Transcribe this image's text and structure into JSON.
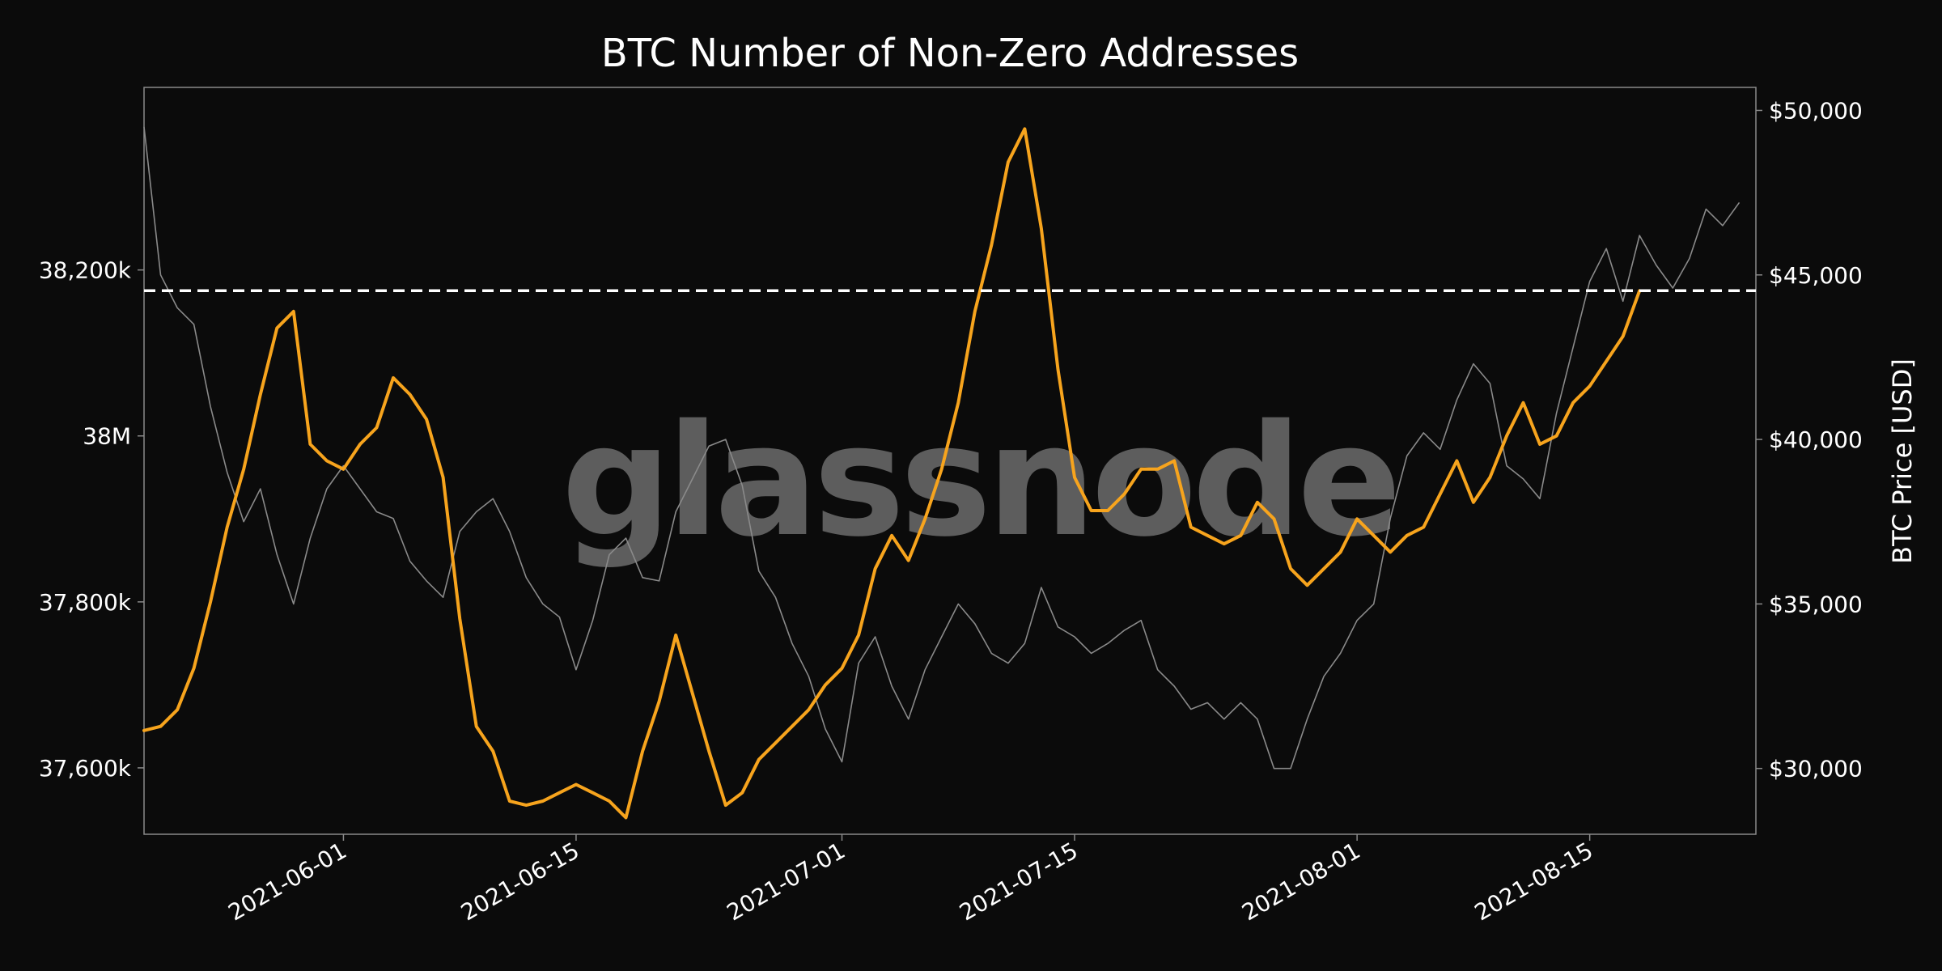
{
  "chart_data": {
    "type": "line",
    "title": "BTC Number of Non-Zero Addresses",
    "watermark": "glassnode",
    "xlabel": "",
    "ylabel_left": "",
    "ylabel_right": "BTC Price [USD]",
    "x_range": [
      "2021-05-20",
      "2021-08-25"
    ],
    "x_ticks": [
      "2021-06-01",
      "2021-06-15",
      "2021-07-01",
      "2021-07-15",
      "2021-08-01",
      "2021-08-15"
    ],
    "y_left_range": [
      37520,
      38420
    ],
    "y_left_unit": "thousand addresses",
    "y_left_ticks": [
      {
        "value": 37600,
        "label": "37,600k"
      },
      {
        "value": 37800,
        "label": "37,800k"
      },
      {
        "value": 38000,
        "label": "38M"
      },
      {
        "value": 38200,
        "label": "38,200k"
      }
    ],
    "y_right_range": [
      28000,
      50700
    ],
    "y_right_ticks": [
      {
        "value": 30000,
        "label": "$30,000"
      },
      {
        "value": 35000,
        "label": "$35,000"
      },
      {
        "value": 40000,
        "label": "$40,000"
      },
      {
        "value": 45000,
        "label": "$45,000"
      },
      {
        "value": 50000,
        "label": "$50,000"
      }
    ],
    "reference_line": {
      "value": 38175,
      "style": "dashed",
      "color": "#ffffff"
    },
    "grid": false,
    "series": [
      {
        "name": "Non-Zero Addresses",
        "axis": "left",
        "color": "#f7a41d",
        "points": [
          [
            "2021-05-20",
            37645
          ],
          [
            "2021-05-21",
            37650
          ],
          [
            "2021-05-22",
            37670
          ],
          [
            "2021-05-23",
            37720
          ],
          [
            "2021-05-24",
            37800
          ],
          [
            "2021-05-25",
            37890
          ],
          [
            "2021-05-26",
            37960
          ],
          [
            "2021-05-27",
            38050
          ],
          [
            "2021-05-28",
            38130
          ],
          [
            "2021-05-29",
            38150
          ],
          [
            "2021-05-30",
            37990
          ],
          [
            "2021-05-31",
            37970
          ],
          [
            "2021-06-01",
            37960
          ],
          [
            "2021-06-02",
            37990
          ],
          [
            "2021-06-03",
            38010
          ],
          [
            "2021-06-04",
            38070
          ],
          [
            "2021-06-05",
            38050
          ],
          [
            "2021-06-06",
            38020
          ],
          [
            "2021-06-07",
            37950
          ],
          [
            "2021-06-08",
            37780
          ],
          [
            "2021-06-09",
            37650
          ],
          [
            "2021-06-10",
            37620
          ],
          [
            "2021-06-11",
            37560
          ],
          [
            "2021-06-12",
            37555
          ],
          [
            "2021-06-13",
            37560
          ],
          [
            "2021-06-14",
            37570
          ],
          [
            "2021-06-15",
            37580
          ],
          [
            "2021-06-16",
            37570
          ],
          [
            "2021-06-17",
            37560
          ],
          [
            "2021-06-18",
            37540
          ],
          [
            "2021-06-19",
            37620
          ],
          [
            "2021-06-20",
            37680
          ],
          [
            "2021-06-21",
            37760
          ],
          [
            "2021-06-22",
            37690
          ],
          [
            "2021-06-23",
            37620
          ],
          [
            "2021-06-24",
            37555
          ],
          [
            "2021-06-25",
            37570
          ],
          [
            "2021-06-26",
            37610
          ],
          [
            "2021-06-27",
            37630
          ],
          [
            "2021-06-28",
            37650
          ],
          [
            "2021-06-29",
            37670
          ],
          [
            "2021-06-30",
            37700
          ],
          [
            "2021-07-01",
            37720
          ],
          [
            "2021-07-02",
            37760
          ],
          [
            "2021-07-03",
            37840
          ],
          [
            "2021-07-04",
            37880
          ],
          [
            "2021-07-05",
            37850
          ],
          [
            "2021-07-06",
            37900
          ],
          [
            "2021-07-07",
            37960
          ],
          [
            "2021-07-08",
            38040
          ],
          [
            "2021-07-09",
            38150
          ],
          [
            "2021-07-10",
            38230
          ],
          [
            "2021-07-11",
            38330
          ],
          [
            "2021-07-12",
            38370
          ],
          [
            "2021-07-13",
            38250
          ],
          [
            "2021-07-14",
            38080
          ],
          [
            "2021-07-15",
            37950
          ],
          [
            "2021-07-16",
            37910
          ],
          [
            "2021-07-17",
            37910
          ],
          [
            "2021-07-18",
            37930
          ],
          [
            "2021-07-19",
            37960
          ],
          [
            "2021-07-20",
            37960
          ],
          [
            "2021-07-21",
            37970
          ],
          [
            "2021-07-22",
            37890
          ],
          [
            "2021-07-23",
            37880
          ],
          [
            "2021-07-24",
            37870
          ],
          [
            "2021-07-25",
            37880
          ],
          [
            "2021-07-26",
            37920
          ],
          [
            "2021-07-27",
            37900
          ],
          [
            "2021-07-28",
            37840
          ],
          [
            "2021-07-29",
            37820
          ],
          [
            "2021-07-30",
            37840
          ],
          [
            "2021-07-31",
            37860
          ],
          [
            "2021-08-01",
            37900
          ],
          [
            "2021-08-02",
            37880
          ],
          [
            "2021-08-03",
            37860
          ],
          [
            "2021-08-04",
            37880
          ],
          [
            "2021-08-05",
            37890
          ],
          [
            "2021-08-06",
            37930
          ],
          [
            "2021-08-07",
            37970
          ],
          [
            "2021-08-08",
            37920
          ],
          [
            "2021-08-09",
            37950
          ],
          [
            "2021-08-10",
            38000
          ],
          [
            "2021-08-11",
            38040
          ],
          [
            "2021-08-12",
            37990
          ],
          [
            "2021-08-13",
            38000
          ],
          [
            "2021-08-14",
            38040
          ],
          [
            "2021-08-15",
            38060
          ],
          [
            "2021-08-16",
            38090
          ],
          [
            "2021-08-17",
            38120
          ],
          [
            "2021-08-18",
            38175
          ]
        ]
      },
      {
        "name": "BTC Price [USD]",
        "axis": "right",
        "color": "#8a8a8a",
        "points": [
          [
            "2021-05-20",
            49500
          ],
          [
            "2021-05-21",
            45000
          ],
          [
            "2021-05-22",
            44000
          ],
          [
            "2021-05-23",
            43500
          ],
          [
            "2021-05-24",
            41000
          ],
          [
            "2021-05-25",
            39000
          ],
          [
            "2021-05-26",
            37500
          ],
          [
            "2021-05-27",
            38500
          ],
          [
            "2021-05-28",
            36500
          ],
          [
            "2021-05-29",
            35000
          ],
          [
            "2021-05-30",
            37000
          ],
          [
            "2021-05-31",
            38500
          ],
          [
            "2021-06-01",
            39200
          ],
          [
            "2021-06-02",
            38500
          ],
          [
            "2021-06-03",
            37800
          ],
          [
            "2021-06-04",
            37600
          ],
          [
            "2021-06-05",
            36300
          ],
          [
            "2021-06-06",
            35700
          ],
          [
            "2021-06-07",
            35200
          ],
          [
            "2021-06-08",
            37200
          ],
          [
            "2021-06-09",
            37800
          ],
          [
            "2021-06-10",
            38200
          ],
          [
            "2021-06-11",
            37200
          ],
          [
            "2021-06-12",
            35800
          ],
          [
            "2021-06-13",
            35000
          ],
          [
            "2021-06-14",
            34600
          ],
          [
            "2021-06-15",
            33000
          ],
          [
            "2021-06-16",
            34500
          ],
          [
            "2021-06-17",
            36500
          ],
          [
            "2021-06-18",
            37000
          ],
          [
            "2021-06-19",
            35800
          ],
          [
            "2021-06-20",
            35700
          ],
          [
            "2021-06-21",
            37800
          ],
          [
            "2021-06-22",
            38800
          ],
          [
            "2021-06-23",
            39800
          ],
          [
            "2021-06-24",
            40000
          ],
          [
            "2021-06-25",
            38600
          ],
          [
            "2021-06-26",
            36000
          ],
          [
            "2021-06-27",
            35200
          ],
          [
            "2021-06-28",
            33800
          ],
          [
            "2021-06-29",
            32800
          ],
          [
            "2021-06-30",
            31200
          ],
          [
            "2021-07-01",
            30200
          ],
          [
            "2021-07-02",
            33200
          ],
          [
            "2021-07-03",
            34000
          ],
          [
            "2021-07-04",
            32500
          ],
          [
            "2021-07-05",
            31500
          ],
          [
            "2021-07-06",
            33000
          ],
          [
            "2021-07-07",
            34000
          ],
          [
            "2021-07-08",
            35000
          ],
          [
            "2021-07-09",
            34400
          ],
          [
            "2021-07-10",
            33500
          ],
          [
            "2021-07-11",
            33200
          ],
          [
            "2021-07-12",
            33800
          ],
          [
            "2021-07-13",
            35500
          ],
          [
            "2021-07-14",
            34300
          ],
          [
            "2021-07-15",
            34000
          ],
          [
            "2021-07-16",
            33500
          ],
          [
            "2021-07-17",
            33800
          ],
          [
            "2021-07-18",
            34200
          ],
          [
            "2021-07-19",
            34500
          ],
          [
            "2021-07-20",
            33000
          ],
          [
            "2021-07-21",
            32500
          ],
          [
            "2021-07-22",
            31800
          ],
          [
            "2021-07-23",
            32000
          ],
          [
            "2021-07-24",
            31500
          ],
          [
            "2021-07-25",
            32000
          ],
          [
            "2021-07-26",
            31500
          ],
          [
            "2021-07-27",
            30000
          ],
          [
            "2021-07-28",
            30000
          ],
          [
            "2021-07-29",
            31500
          ],
          [
            "2021-07-30",
            32800
          ],
          [
            "2021-07-31",
            33500
          ],
          [
            "2021-08-01",
            34500
          ],
          [
            "2021-08-02",
            35000
          ],
          [
            "2021-08-03",
            37600
          ],
          [
            "2021-08-04",
            39500
          ],
          [
            "2021-08-05",
            40200
          ],
          [
            "2021-08-06",
            39700
          ],
          [
            "2021-08-07",
            41200
          ],
          [
            "2021-08-08",
            42300
          ],
          [
            "2021-08-09",
            41700
          ],
          [
            "2021-08-10",
            39200
          ],
          [
            "2021-08-11",
            38800
          ],
          [
            "2021-08-12",
            38200
          ],
          [
            "2021-08-13",
            40800
          ],
          [
            "2021-08-14",
            42800
          ],
          [
            "2021-08-15",
            44800
          ],
          [
            "2021-08-16",
            45800
          ],
          [
            "2021-08-17",
            44200
          ],
          [
            "2021-08-18",
            46200
          ],
          [
            "2021-08-19",
            45300
          ],
          [
            "2021-08-20",
            44600
          ],
          [
            "2021-08-21",
            45500
          ],
          [
            "2021-08-22",
            47000
          ],
          [
            "2021-08-23",
            46500
          ],
          [
            "2021-08-24",
            47200
          ]
        ]
      }
    ]
  }
}
